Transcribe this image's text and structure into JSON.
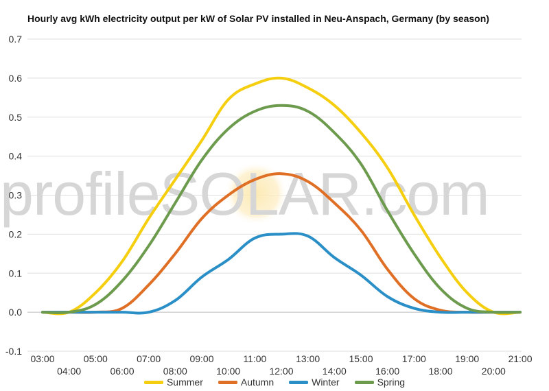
{
  "chart_data": {
    "type": "line",
    "title": "Hourly avg kWh electricity output per kW of Solar PV installed in Neu-Anspach, Germany (by season)",
    "xlabel": "",
    "ylabel": "",
    "x": [
      "03:00",
      "04:00",
      "05:00",
      "06:00",
      "07:00",
      "08:00",
      "09:00",
      "10:00",
      "11:00",
      "12:00",
      "13:00",
      "14:00",
      "15:00",
      "16:00",
      "17:00",
      "18:00",
      "19:00",
      "20:00",
      "21:00"
    ],
    "ylim": [
      -0.1,
      0.7
    ],
    "yticks": [
      "0.7",
      "0.6",
      "0.5",
      "0.4",
      "0.3",
      "0.2",
      "0.1",
      "0.0",
      "-0.1"
    ],
    "grid": true,
    "legend_position": "bottom",
    "watermark": "profileSOLAR.com",
    "series": [
      {
        "name": "Summer",
        "color": "#f5cf0f",
        "values": [
          0,
          0,
          0.05,
          0.13,
          0.24,
          0.34,
          0.44,
          0.545,
          0.585,
          0.6,
          0.575,
          0.53,
          0.46,
          0.37,
          0.25,
          0.14,
          0.05,
          0,
          0
        ]
      },
      {
        "name": "Autumn",
        "color": "#e06f26",
        "values": [
          0,
          0,
          0,
          0.01,
          0.07,
          0.15,
          0.24,
          0.3,
          0.34,
          0.355,
          0.335,
          0.28,
          0.21,
          0.11,
          0.035,
          0.005,
          0,
          0,
          0
        ]
      },
      {
        "name": "Winter",
        "color": "#2a8fc6",
        "values": [
          0,
          0,
          0,
          0,
          0,
          0.03,
          0.09,
          0.135,
          0.19,
          0.2,
          0.195,
          0.14,
          0.095,
          0.04,
          0.01,
          0,
          0,
          0,
          0
        ]
      },
      {
        "name": "Spring",
        "color": "#6d9b4e",
        "values": [
          0,
          0,
          0.02,
          0.08,
          0.17,
          0.28,
          0.39,
          0.47,
          0.515,
          0.53,
          0.515,
          0.46,
          0.38,
          0.26,
          0.15,
          0.06,
          0.01,
          0,
          0
        ]
      }
    ]
  }
}
